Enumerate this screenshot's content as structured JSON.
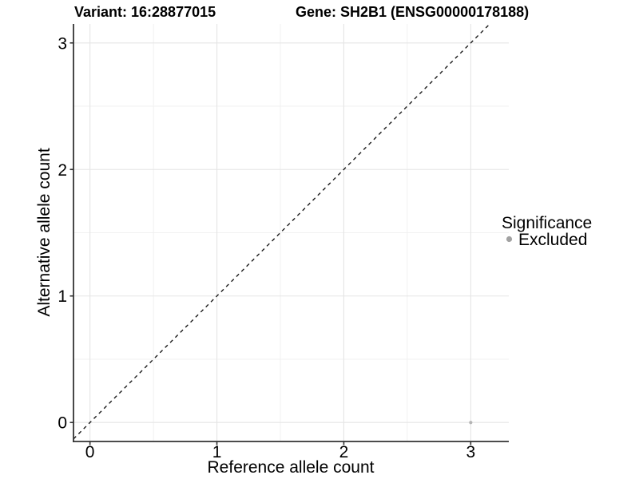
{
  "chart_data": {
    "type": "scatter",
    "titles": {
      "left": "Variant: 16:28877015",
      "right": "Gene: SH2B1 (ENSG00000178188)"
    },
    "xlabel": "Reference allele count",
    "ylabel": "Alternative allele count",
    "xlim": [
      -0.13,
      3.3
    ],
    "ylim": [
      -0.15,
      3.15
    ],
    "xticks": [
      0,
      1,
      2,
      3
    ],
    "yticks": [
      0,
      1,
      2,
      3
    ],
    "xticks_minor": [
      0.5,
      1.5,
      2.5
    ],
    "yticks_minor": [
      0.5,
      1.5,
      2.5
    ],
    "grid": "major+minor",
    "legend_position": "right",
    "reference_line": {
      "kind": "identity",
      "slope": 1,
      "intercept": 0,
      "style": "dashed",
      "color": "#1a1a1a"
    },
    "series": [
      {
        "name": "Excluded",
        "color": "#b5b5b5",
        "point_radius": 2.1,
        "points": [
          [
            3,
            0
          ]
        ]
      }
    ],
    "legend": {
      "title": "Significance",
      "items": [
        {
          "label": "Excluded",
          "color": "#a2a2a2"
        }
      ]
    },
    "colors": {
      "grid_major": "#e5e5e5",
      "grid_minor": "#f1f1f1",
      "axis": "#333333",
      "text": "#000000",
      "background": "#ffffff"
    }
  }
}
